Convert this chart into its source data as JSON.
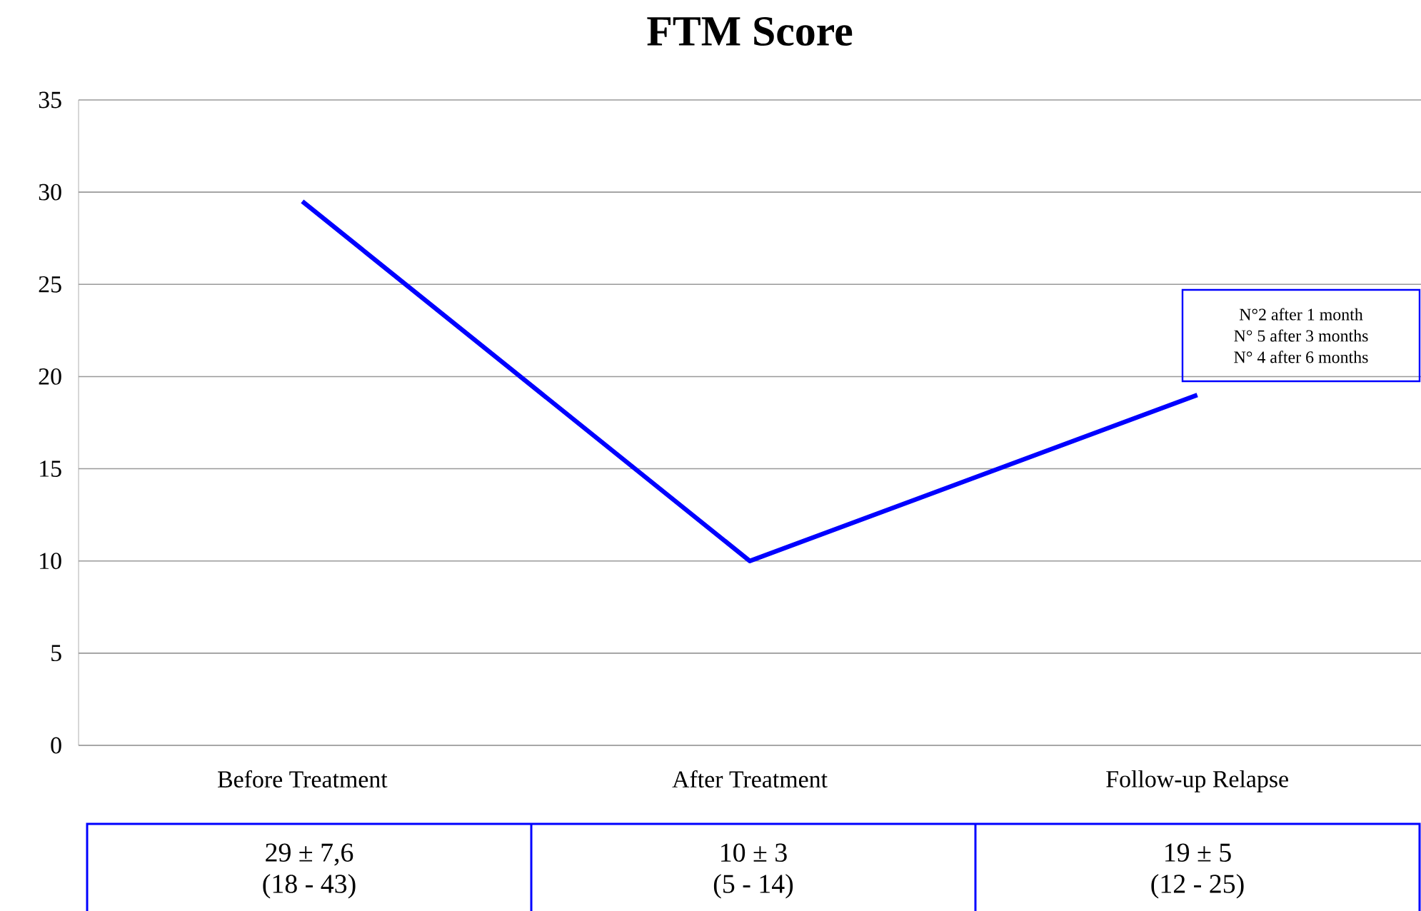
{
  "chart_data": {
    "type": "line",
    "title": "FTM Score",
    "categories": [
      "Before Treatment",
      "After Treatment",
      "Follow-up Relapse"
    ],
    "series": [
      {
        "color": "#0000ff",
        "values": [
          29.5,
          10,
          19
        ]
      }
    ],
    "ylim": [
      0,
      35
    ],
    "yticks": [
      0,
      5,
      10,
      15,
      20,
      25,
      30,
      35
    ],
    "grid": "y",
    "marker": "none",
    "line_style": "solid",
    "annotations": [
      "N°2 after 1 month",
      "N° 5 after 3 months",
      "N° 4 after 6 months",
      "29 ± 7,6",
      "(18 - 43)",
      "10 ± 3",
      "(5 - 14)",
      "19 ± 5",
      "(12 - 25)"
    ]
  }
}
